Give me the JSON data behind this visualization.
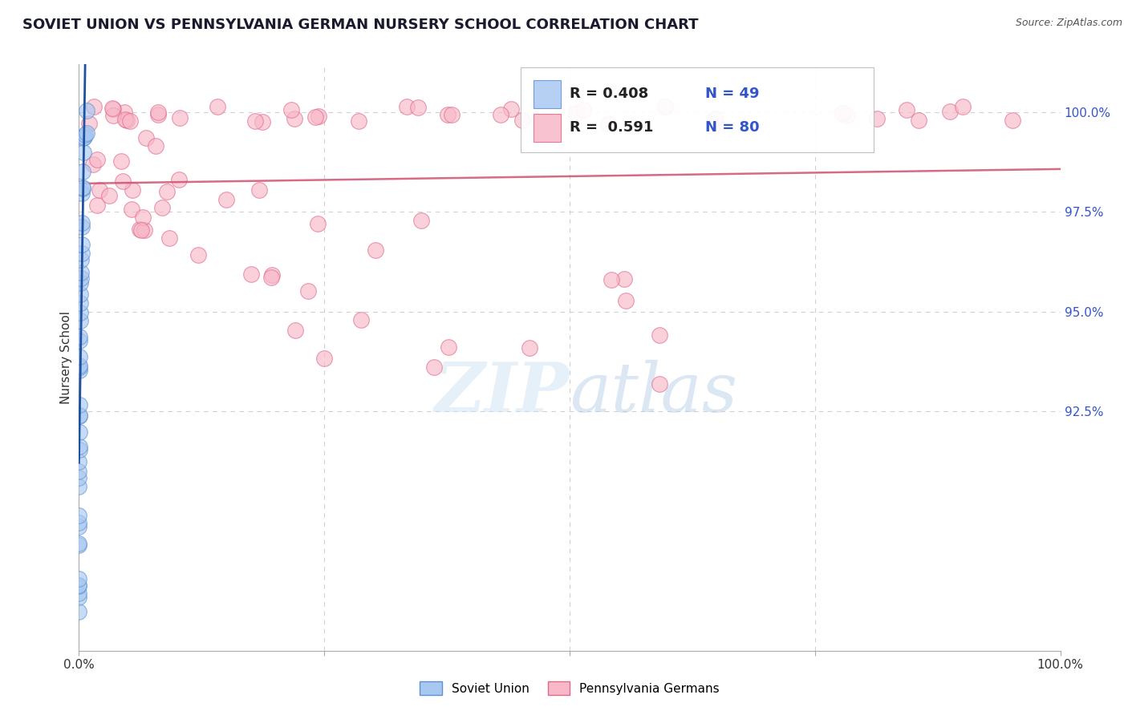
{
  "title": "SOVIET UNION VS PENNSYLVANIA GERMAN NURSERY SCHOOL CORRELATION CHART",
  "source": "Source: ZipAtlas.com",
  "ylabel": "Nursery School",
  "legend_label1": "Soviet Union",
  "legend_label2": "Pennsylvania Germans",
  "R1": 0.408,
  "N1": 49,
  "R2": 0.591,
  "N2": 80,
  "color_blue_fill": "#A8C8F0",
  "color_blue_edge": "#6090D0",
  "color_pink_fill": "#F8B8C8",
  "color_pink_edge": "#E06888",
  "trendline_blue": "#2050A0",
  "trendline_pink": "#D05070",
  "background": "#FFFFFF",
  "grid_color": "#CCCCCC",
  "xlim": [
    0,
    100
  ],
  "ylim": [
    86.5,
    101.2
  ],
  "yticks": [
    92.5,
    95.0,
    97.5,
    100.0
  ],
  "ytick_labels": [
    "92.5%",
    "95.0%",
    "97.5%",
    "100.0%"
  ],
  "right_tick_color": "#3355CC"
}
